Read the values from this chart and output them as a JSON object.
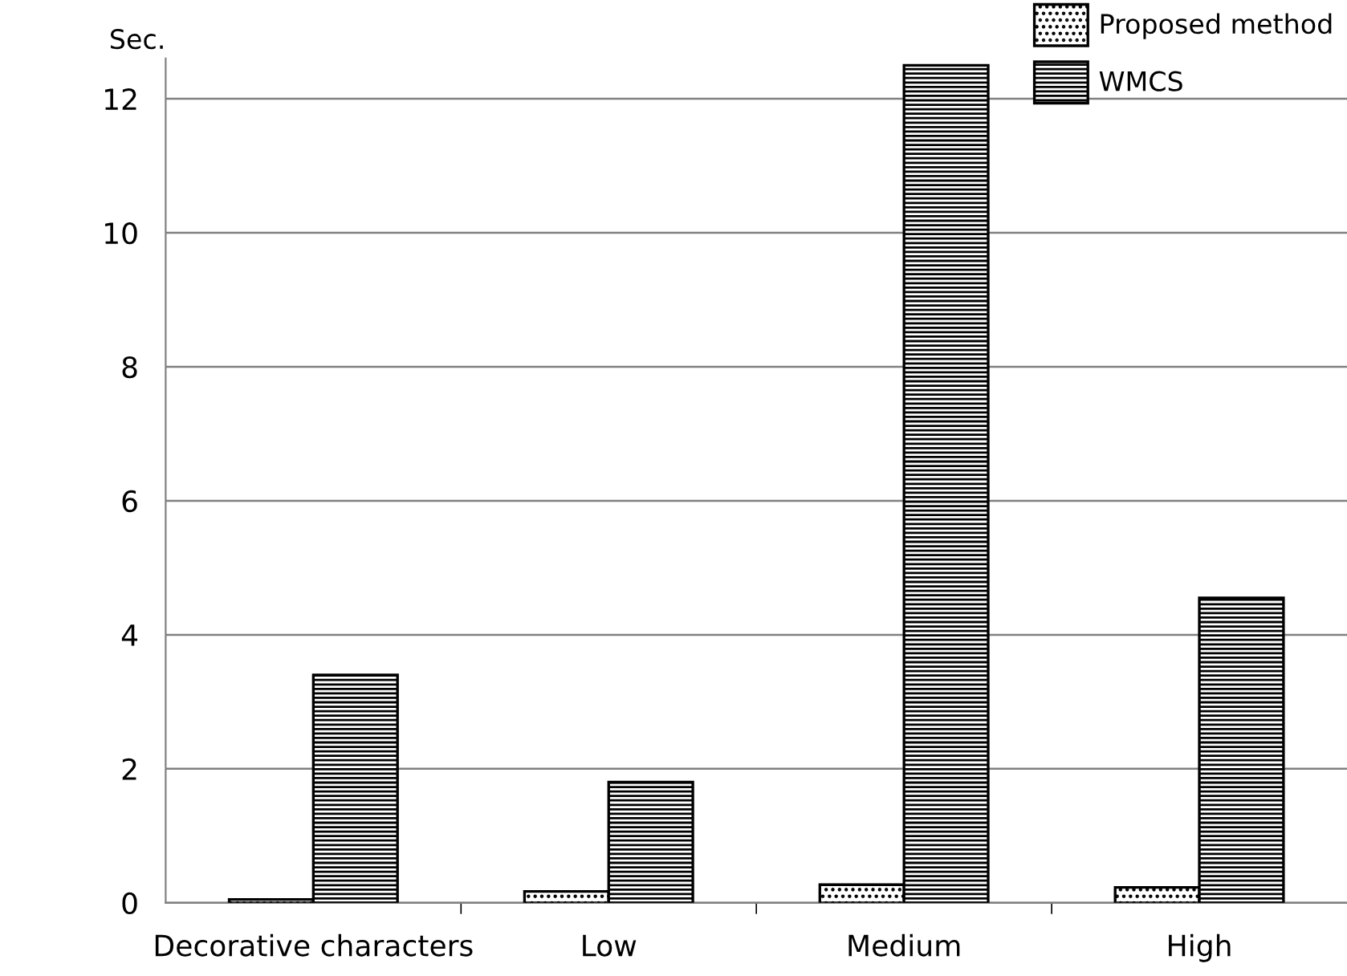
{
  "chart_data": {
    "type": "bar",
    "ylabel": "Sec.",
    "categories": [
      "Decorative characters",
      "Low",
      "Medium",
      "High"
    ],
    "series": [
      {
        "name": "Proposed method",
        "color": "#000000",
        "values": [
          0.05,
          0.17,
          0.27,
          0.23
        ]
      },
      {
        "name": "WMCS",
        "color": "#000000",
        "values": [
          3.4,
          1.8,
          12.5,
          4.55
        ]
      }
    ],
    "ylim": [
      0,
      12.6
    ],
    "yticks": [
      0,
      2,
      4,
      6,
      8,
      10,
      12
    ],
    "grid": "y",
    "legend": "top right"
  }
}
